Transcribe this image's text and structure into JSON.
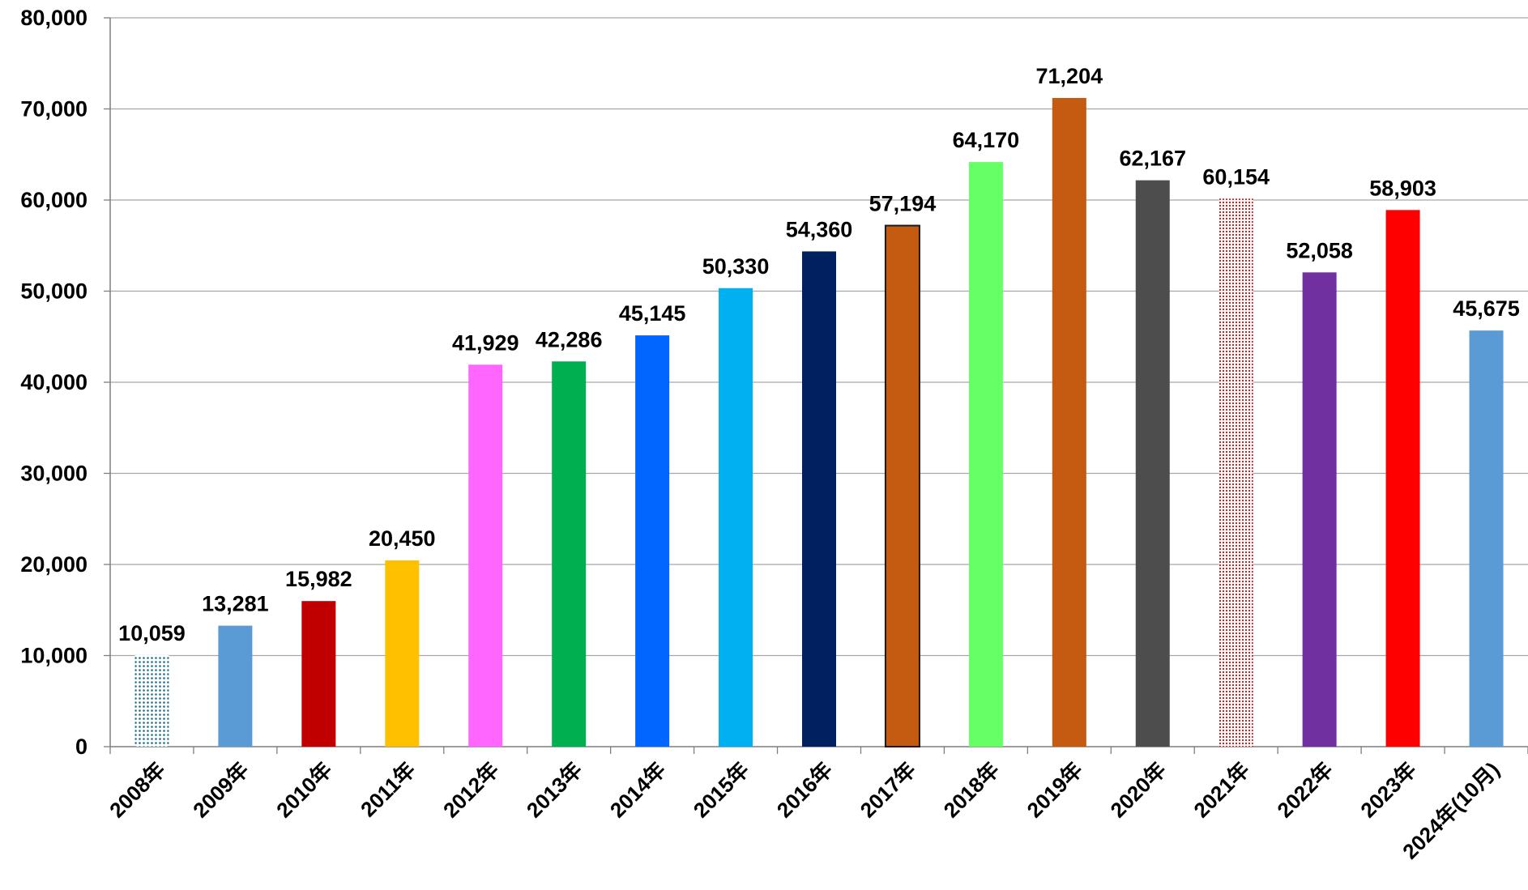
{
  "chart_data": {
    "type": "bar",
    "categories": [
      "2008年",
      "2009年",
      "2010年",
      "2011年",
      "2012年",
      "2013年",
      "2014年",
      "2015年",
      "2016年",
      "2017年",
      "2018年",
      "2019年",
      "2020年",
      "2021年",
      "2022年",
      "2023年",
      "2024年(10月)"
    ],
    "values": [
      10059,
      13281,
      15982,
      20450,
      41929,
      42286,
      45145,
      50330,
      54360,
      57194,
      64170,
      71204,
      62167,
      60154,
      52058,
      58903,
      45675
    ],
    "value_labels": [
      "10,059",
      "13,281",
      "15,982",
      "20,450",
      "41,929",
      "42,286",
      "45,145",
      "50,330",
      "54,360",
      "57,194",
      "64,170",
      "71,204",
      "62,167",
      "60,154",
      "52,058",
      "58,903",
      "45,675"
    ],
    "colors": [
      "#1F6F8B",
      "#5B9BD5",
      "#C00000",
      "#FFC000",
      "#FF66FF",
      "#00B050",
      "#0066FF",
      "#00B0F0",
      "#002060",
      "#C55A11",
      "#66FF66",
      "#C55A11",
      "#4D4D4D",
      "#E06666",
      "#7030A0",
      "#FF0000",
      "#5B9BD5"
    ],
    "patterns": [
      "dots-blue",
      "",
      "",
      "",
      "",
      "",
      "",
      "",
      "",
      "outlined",
      "",
      "",
      "",
      "dots-red",
      "",
      "",
      ""
    ],
    "yticks": [
      "0",
      "10,000",
      "20,000",
      "30,000",
      "40,000",
      "50,000",
      "60,000",
      "70,000",
      "80,000"
    ],
    "ylim": [
      0,
      80000
    ],
    "grid": true,
    "legend": "none",
    "title": "",
    "xlabel": "",
    "ylabel": ""
  }
}
